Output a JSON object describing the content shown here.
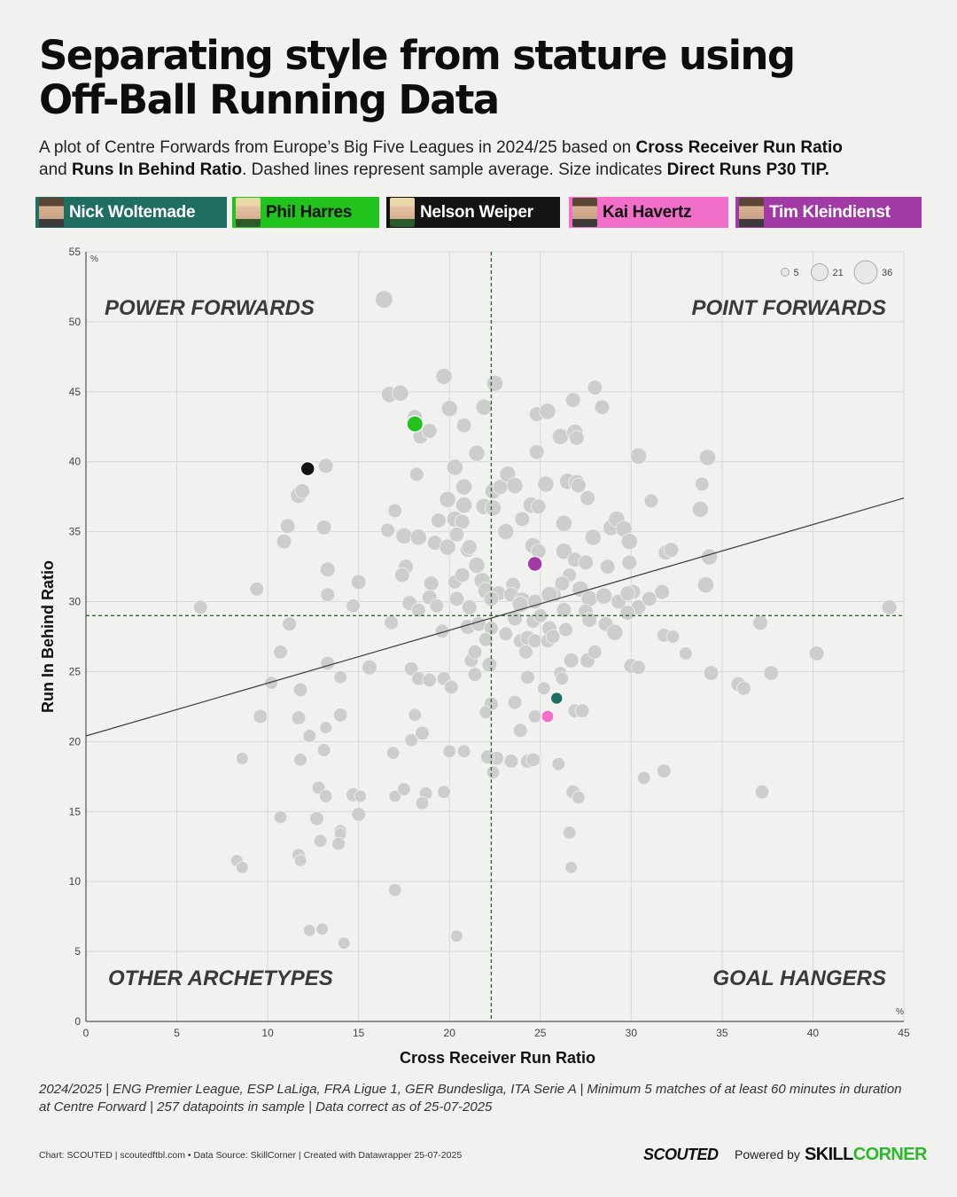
{
  "title_line1": "Separating style from stature using",
  "title_line2": "Off-Ball Running Data",
  "subtitle": {
    "p1": "A plot of Centre Forwards from Europe’s Big Five Leagues in 2024/25 based on ",
    "b1": "Cross Receiver Run Ratio",
    "p2": "and ",
    "b2": "Runs In Behind Ratio",
    "p3": ". Dashed lines represent sample average. Size indicates ",
    "b3": "Direct Runs P30 TIP."
  },
  "players": [
    {
      "name": "Nick Woltemade",
      "color": "#1e6e62"
    },
    {
      "name": "Phil Harres",
      "color": "#21c31c"
    },
    {
      "name": "Nelson Weiper",
      "color": "#141414"
    },
    {
      "name": "Kai Havertz",
      "color": "#f16fc8"
    },
    {
      "name": "Tim Kleindienst",
      "color": "#a23aa6"
    }
  ],
  "footnote": {
    "line1": "2024/2025 | ENG Premier League, ESP LaLiga, FRA Ligue 1, GER Bundesliga, ITA Serie A | Minimum 5 matches of at least 60 minutes in duration",
    "line2": "at Centre Forward | 257 datapoints in sample | Data correct as of 25-07-2025"
  },
  "credits": "Chart: SCOUTED | scoutedftbl.com • Data Source: SkillCorner | Created with Datawrapper 25-07-2025",
  "brand": {
    "scouted": "SCOUTED",
    "powered": "Powered by",
    "skill_a": "SKILL",
    "skill_b": "CORNER"
  },
  "chart_data": {
    "type": "scatter",
    "xlabel": "Cross Receiver Run Ratio",
    "ylabel": "Run In Behind Ratio",
    "x_unit": "%",
    "y_unit": "%",
    "xlim": [
      0,
      45
    ],
    "ylim": [
      0,
      55
    ],
    "xticks": [
      0,
      5,
      10,
      15,
      20,
      25,
      30,
      35,
      40,
      45
    ],
    "yticks": [
      0,
      5,
      10,
      15,
      20,
      25,
      30,
      35,
      40,
      45,
      50,
      55
    ],
    "grid": true,
    "avg_x": 22.3,
    "avg_y": 29.0,
    "trendline": {
      "x0": 0,
      "y0": 20.4,
      "x1": 45,
      "y1": 37.4
    },
    "quadrants": {
      "top_left": "POWER FORWARDS",
      "top_right": "POINT FORWARDS",
      "bottom_left": "OTHER ARCHETYPES",
      "bottom_right": "GOAL HANGERS"
    },
    "size_legend": [
      5,
      21,
      36
    ],
    "size_variable": "Direct Runs P30 TIP",
    "highlighted": [
      {
        "name": "Nick Woltemade",
        "x": 25.9,
        "y": 23.1,
        "s": 12,
        "color": "#1e6e62"
      },
      {
        "name": "Phil Harres",
        "x": 18.1,
        "y": 42.7,
        "s": 21,
        "color": "#21c31c"
      },
      {
        "name": "Nelson Weiper",
        "x": 12.2,
        "y": 39.5,
        "s": 16,
        "color": "#141414"
      },
      {
        "name": "Kai Havertz",
        "x": 25.4,
        "y": 21.8,
        "s": 13,
        "color": "#f16fc8"
      },
      {
        "name": "Tim Kleindienst",
        "x": 24.7,
        "y": 32.7,
        "s": 18,
        "color": "#a23aa6"
      }
    ],
    "points": [
      [
        16.4,
        51.6,
        24
      ],
      [
        22.5,
        45.6,
        21
      ],
      [
        16.7,
        44.8,
        21
      ],
      [
        19.7,
        46.1,
        21
      ],
      [
        17.3,
        44.9,
        21
      ],
      [
        21.9,
        43.9,
        21
      ],
      [
        18.1,
        43.2,
        18
      ],
      [
        18.4,
        41.8,
        18
      ],
      [
        18.9,
        42.2,
        18
      ],
      [
        20.0,
        43.8,
        21
      ],
      [
        20.8,
        42.6,
        18
      ],
      [
        21.5,
        40.6,
        21
      ],
      [
        24.8,
        43.4,
        18
      ],
      [
        25.4,
        43.6,
        21
      ],
      [
        26.8,
        44.4,
        18
      ],
      [
        28.0,
        45.3,
        18
      ],
      [
        28.4,
        43.9,
        18
      ],
      [
        26.1,
        41.8,
        21
      ],
      [
        26.9,
        42.1,
        21
      ],
      [
        27.0,
        41.7,
        18
      ],
      [
        24.8,
        40.7,
        18
      ],
      [
        30.4,
        40.4,
        21
      ],
      [
        34.2,
        40.3,
        21
      ],
      [
        13.2,
        39.7,
        18
      ],
      [
        11.7,
        37.6,
        21
      ],
      [
        11.9,
        37.9,
        18
      ],
      [
        18.2,
        39.1,
        16
      ],
      [
        20.3,
        39.6,
        21
      ],
      [
        20.8,
        38.2,
        21
      ],
      [
        19.9,
        37.3,
        21
      ],
      [
        22.4,
        37.9,
        21
      ],
      [
        22.8,
        38.2,
        18
      ],
      [
        23.2,
        39.1,
        21
      ],
      [
        23.6,
        38.3,
        21
      ],
      [
        25.3,
        38.4,
        21
      ],
      [
        26.5,
        38.6,
        21
      ],
      [
        27.0,
        38.5,
        21
      ],
      [
        27.1,
        38.3,
        18
      ],
      [
        27.6,
        37.4,
        18
      ],
      [
        31.1,
        37.2,
        16
      ],
      [
        33.9,
        38.4,
        16
      ],
      [
        33.8,
        36.6,
        21
      ],
      [
        17.0,
        36.5,
        16
      ],
      [
        19.4,
        35.8,
        18
      ],
      [
        20.8,
        36.9,
        21
      ],
      [
        20.3,
        35.9,
        21
      ],
      [
        20.7,
        35.7,
        18
      ],
      [
        21.9,
        36.8,
        21
      ],
      [
        22.4,
        36.7,
        21
      ],
      [
        24.5,
        36.9,
        21
      ],
      [
        24.9,
        36.8,
        18
      ],
      [
        24.0,
        35.9,
        18
      ],
      [
        26.3,
        35.6,
        21
      ],
      [
        27.9,
        34.6,
        21
      ],
      [
        28.9,
        35.3,
        21
      ],
      [
        29.2,
        35.9,
        21
      ],
      [
        29.6,
        35.2,
        21
      ],
      [
        11.1,
        35.4,
        18
      ],
      [
        10.9,
        34.3,
        18
      ],
      [
        13.1,
        35.3,
        18
      ],
      [
        16.6,
        35.1,
        16
      ],
      [
        17.5,
        34.7,
        21
      ],
      [
        18.3,
        34.6,
        21
      ],
      [
        19.2,
        34.2,
        18
      ],
      [
        19.9,
        33.9,
        21
      ],
      [
        20.4,
        34.8,
        18
      ],
      [
        21.0,
        33.7,
        18
      ],
      [
        21.1,
        33.9,
        18
      ],
      [
        23.1,
        35.0,
        21
      ],
      [
        24.6,
        34.0,
        21
      ],
      [
        24.9,
        33.6,
        18
      ],
      [
        26.3,
        33.6,
        21
      ],
      [
        26.9,
        33.0,
        18
      ],
      [
        27.5,
        32.8,
        18
      ],
      [
        29.9,
        34.3,
        21
      ],
      [
        31.9,
        33.5,
        18
      ],
      [
        32.2,
        33.7,
        18
      ],
      [
        34.3,
        33.2,
        21
      ],
      [
        13.3,
        32.3,
        18
      ],
      [
        17.6,
        32.5,
        18
      ],
      [
        17.4,
        31.9,
        18
      ],
      [
        19.0,
        31.3,
        18
      ],
      [
        20.3,
        31.4,
        16
      ],
      [
        20.7,
        31.9,
        18
      ],
      [
        21.5,
        32.6,
        21
      ],
      [
        21.8,
        31.5,
        21
      ],
      [
        22.0,
        30.8,
        21
      ],
      [
        22.7,
        30.6,
        18
      ],
      [
        23.5,
        31.2,
        18
      ],
      [
        23.4,
        30.5,
        18
      ],
      [
        24.0,
        30.1,
        21
      ],
      [
        25.7,
        30.5,
        21
      ],
      [
        26.6,
        31.9,
        16
      ],
      [
        28.7,
        32.5,
        18
      ],
      [
        29.9,
        32.8,
        18
      ],
      [
        30.1,
        30.7,
        18
      ],
      [
        31.7,
        30.7,
        18
      ],
      [
        34.1,
        31.2,
        21
      ],
      [
        9.4,
        30.9,
        16
      ],
      [
        13.3,
        30.5,
        16
      ],
      [
        15.0,
        31.4,
        18
      ],
      [
        18.9,
        30.3,
        18
      ],
      [
        20.4,
        30.2,
        18
      ],
      [
        21.1,
        29.6,
        18
      ],
      [
        22.3,
        30.2,
        18
      ],
      [
        23.9,
        29.8,
        21
      ],
      [
        24.7,
        30.0,
        18
      ],
      [
        25.5,
        30.5,
        21
      ],
      [
        26.2,
        31.3,
        18
      ],
      [
        27.2,
        30.9,
        21
      ],
      [
        27.7,
        30.2,
        21
      ],
      [
        28.5,
        30.4,
        21
      ],
      [
        29.3,
        30.0,
        18
      ],
      [
        29.8,
        30.6,
        18
      ],
      [
        30.4,
        29.6,
        18
      ],
      [
        31.0,
        30.2,
        18
      ],
      [
        6.3,
        29.6,
        16
      ],
      [
        14.7,
        29.7,
        16
      ],
      [
        17.8,
        29.9,
        18
      ],
      [
        18.3,
        29.4,
        16
      ],
      [
        19.3,
        29.7,
        16
      ],
      [
        21.0,
        28.2,
        18
      ],
      [
        21.6,
        28.4,
        18
      ],
      [
        22.3,
        28.1,
        16
      ],
      [
        23.6,
        28.8,
        18
      ],
      [
        24.6,
        28.6,
        16
      ],
      [
        25.0,
        29.0,
        16
      ],
      [
        25.5,
        28.1,
        18
      ],
      [
        26.3,
        29.4,
        18
      ],
      [
        27.5,
        29.3,
        18
      ],
      [
        27.7,
        28.7,
        18
      ],
      [
        28.6,
        28.4,
        18
      ],
      [
        29.1,
        27.8,
        21
      ],
      [
        29.8,
        29.2,
        18
      ],
      [
        11.2,
        28.4,
        16
      ],
      [
        16.8,
        28.5,
        16
      ],
      [
        19.6,
        27.9,
        16
      ],
      [
        22.0,
        27.3,
        16
      ],
      [
        23.1,
        27.7,
        16
      ],
      [
        23.9,
        27.2,
        16
      ],
      [
        24.3,
        27.4,
        18
      ],
      [
        24.7,
        27.2,
        16
      ],
      [
        26.4,
        28.0,
        16
      ],
      [
        31.8,
        27.6,
        16
      ],
      [
        32.3,
        27.5,
        14
      ],
      [
        37.1,
        28.5,
        18
      ],
      [
        44.2,
        29.6,
        18
      ],
      [
        10.7,
        26.4,
        16
      ],
      [
        13.3,
        25.6,
        16
      ],
      [
        15.6,
        25.3,
        18
      ],
      [
        17.9,
        25.2,
        16
      ],
      [
        18.3,
        24.5,
        16
      ],
      [
        18.9,
        24.4,
        16
      ],
      [
        19.7,
        24.5,
        16
      ],
      [
        20.1,
        23.9,
        16
      ],
      [
        21.2,
        25.8,
        16
      ],
      [
        21.4,
        26.4,
        16
      ],
      [
        22.2,
        25.5,
        18
      ],
      [
        24.2,
        26.4,
        16
      ],
      [
        25.4,
        27.2,
        16
      ],
      [
        25.7,
        27.5,
        16
      ],
      [
        26.1,
        24.9,
        14
      ],
      [
        26.7,
        25.8,
        18
      ],
      [
        27.6,
        25.8,
        18
      ],
      [
        28.0,
        26.4,
        16
      ],
      [
        30.0,
        25.4,
        18
      ],
      [
        30.4,
        25.3,
        16
      ],
      [
        33.0,
        26.3,
        14
      ],
      [
        34.4,
        24.9,
        18
      ],
      [
        40.2,
        26.3,
        18
      ],
      [
        10.2,
        24.2,
        14
      ],
      [
        11.8,
        23.7,
        16
      ],
      [
        14.0,
        24.6,
        14
      ],
      [
        21.4,
        24.8,
        16
      ],
      [
        22.3,
        22.7,
        16
      ],
      [
        23.6,
        22.8,
        16
      ],
      [
        24.3,
        24.6,
        16
      ],
      [
        25.2,
        23.8,
        14
      ],
      [
        26.2,
        24.5,
        14
      ],
      [
        35.9,
        24.1,
        18
      ],
      [
        36.2,
        23.8,
        16
      ],
      [
        37.7,
        24.9,
        18
      ],
      [
        9.6,
        21.8,
        16
      ],
      [
        11.7,
        21.7,
        16
      ],
      [
        14.0,
        21.9,
        16
      ],
      [
        18.1,
        21.9,
        14
      ],
      [
        22.0,
        22.1,
        14
      ],
      [
        24.7,
        21.8,
        14
      ],
      [
        26.9,
        22.2,
        16
      ],
      [
        27.3,
        22.2,
        16
      ],
      [
        12.3,
        20.4,
        14
      ],
      [
        13.2,
        21.0,
        12
      ],
      [
        17.9,
        20.1,
        14
      ],
      [
        18.5,
        20.6,
        16
      ],
      [
        20.0,
        19.3,
        14
      ],
      [
        20.8,
        19.3,
        14
      ],
      [
        22.6,
        18.8,
        16
      ],
      [
        23.9,
        20.8,
        16
      ],
      [
        8.6,
        18.8,
        12
      ],
      [
        11.8,
        18.7,
        14
      ],
      [
        13.1,
        19.4,
        14
      ],
      [
        16.9,
        19.2,
        14
      ],
      [
        22.1,
        18.9,
        16
      ],
      [
        23.4,
        18.6,
        16
      ],
      [
        24.3,
        18.6,
        16
      ],
      [
        24.6,
        18.7,
        16
      ],
      [
        26.0,
        18.4,
        14
      ],
      [
        22.4,
        17.8,
        14
      ],
      [
        30.7,
        17.4,
        14
      ],
      [
        31.8,
        17.9,
        16
      ],
      [
        12.8,
        16.7,
        14
      ],
      [
        13.2,
        16.1,
        14
      ],
      [
        14.7,
        16.2,
        16
      ],
      [
        17.0,
        16.1,
        12
      ],
      [
        17.5,
        16.6,
        14
      ],
      [
        18.7,
        16.3,
        14
      ],
      [
        19.7,
        16.4,
        14
      ],
      [
        26.8,
        16.4,
        16
      ],
      [
        27.1,
        16.0,
        14
      ],
      [
        37.2,
        16.4,
        16
      ],
      [
        10.7,
        14.6,
        14
      ],
      [
        12.7,
        14.5,
        16
      ],
      [
        15.0,
        14.8,
        16
      ],
      [
        15.1,
        16.1,
        12
      ],
      [
        18.5,
        15.6,
        14
      ],
      [
        26.6,
        13.5,
        14
      ],
      [
        12.9,
        12.9,
        14
      ],
      [
        14.0,
        13.6,
        14
      ],
      [
        14.0,
        13.4,
        12
      ],
      [
        13.9,
        12.7,
        14
      ],
      [
        11.7,
        11.9,
        14
      ],
      [
        11.8,
        11.5,
        12
      ],
      [
        8.3,
        11.5,
        12
      ],
      [
        8.6,
        11.0,
        12
      ],
      [
        26.7,
        11.0,
        12
      ],
      [
        17.0,
        9.4,
        14
      ],
      [
        12.3,
        6.5,
        12
      ],
      [
        13.0,
        6.6,
        12
      ],
      [
        14.2,
        5.6,
        12
      ],
      [
        20.4,
        6.1,
        12
      ]
    ]
  }
}
